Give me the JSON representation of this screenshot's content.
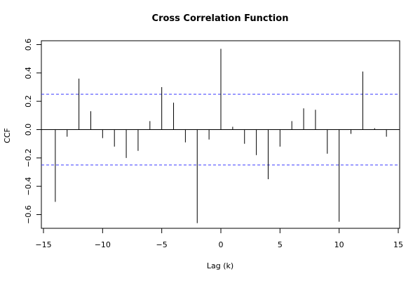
{
  "chart_data": {
    "type": "bar",
    "title": "Cross Correlation Function",
    "xlabel": "Lag (k)",
    "ylabel": "CCF",
    "xlim": [
      -15,
      15
    ],
    "ylim": [
      -0.7,
      0.62
    ],
    "xticks": [
      -15,
      -10,
      -5,
      0,
      5,
      10,
      15
    ],
    "xtick_labels": [
      "−15",
      "−10",
      "−5",
      "0",
      "5",
      "10",
      "15"
    ],
    "yticks": [
      -0.6,
      -0.4,
      -0.2,
      0.0,
      0.2,
      0.4,
      0.6
    ],
    "ytick_labels": [
      "−0.6",
      "−0.4",
      "−0.2",
      "0.0",
      "0.2",
      "0.4",
      "0.6"
    ],
    "grid": false,
    "confidence_bounds": [
      0.25,
      -0.25
    ],
    "colors": {
      "bars": "#000000",
      "confidence": "#3b3bff",
      "zero_line": "#000000"
    },
    "series": [
      {
        "x": [
          -14,
          -13,
          -12,
          -11,
          -10,
          -9,
          -8,
          -7,
          -6,
          -5,
          -4,
          -3,
          -2,
          -1,
          0,
          1,
          2,
          3,
          4,
          5,
          6,
          7,
          8,
          9,
          10,
          11,
          12,
          13,
          14
        ],
        "values": [
          -0.51,
          -0.05,
          0.36,
          0.13,
          -0.06,
          -0.12,
          -0.2,
          -0.15,
          0.06,
          0.3,
          0.19,
          -0.09,
          -0.66,
          -0.07,
          0.57,
          0.02,
          -0.1,
          -0.18,
          -0.35,
          -0.12,
          0.06,
          0.15,
          0.14,
          -0.17,
          -0.65,
          -0.03,
          0.41,
          0.01,
          -0.05
        ]
      }
    ]
  }
}
